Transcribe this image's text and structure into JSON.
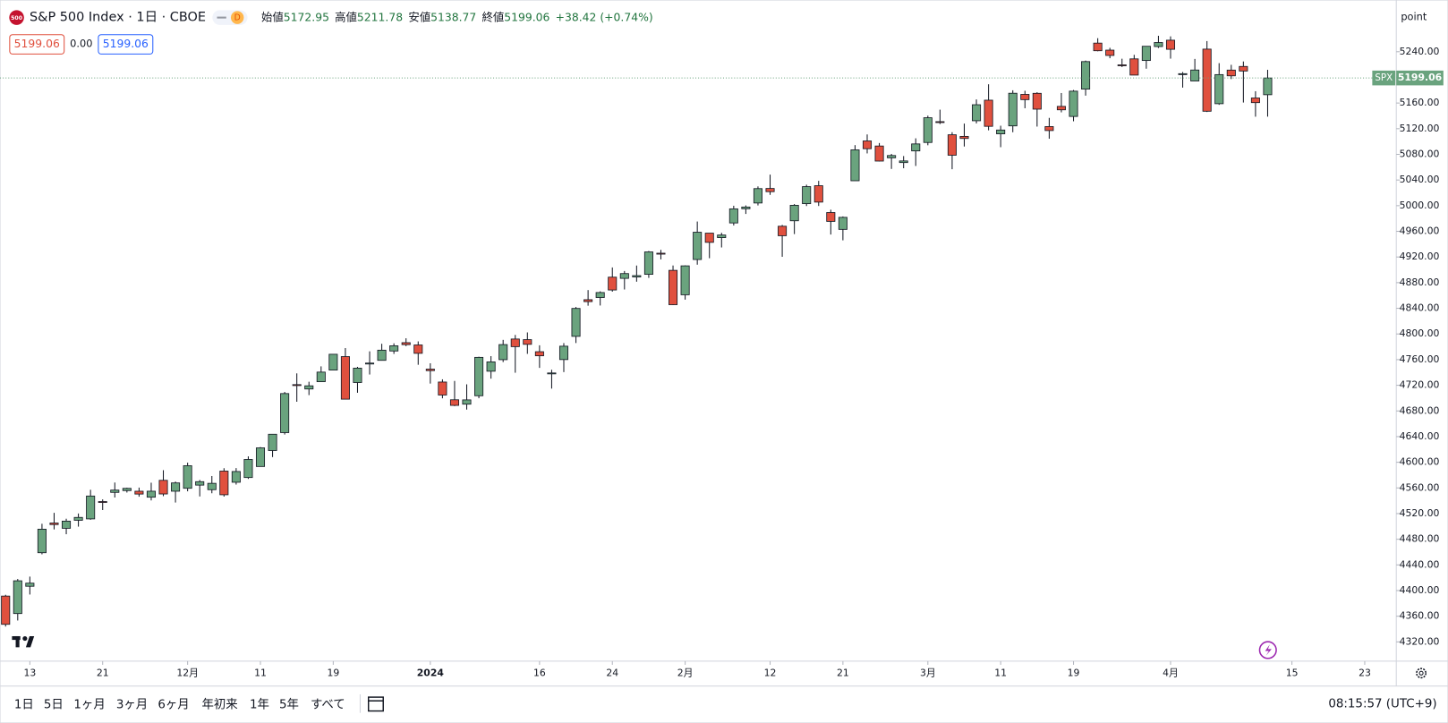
{
  "header": {
    "logo": "500",
    "title": "S&P 500 Index · 1日 · CBOE",
    "interval_badge": "D",
    "open_label": "始値",
    "high_label": "高値",
    "low_label": "安値",
    "close_label": "終値",
    "change": "+38.42 (+0.74%)",
    "sell": "5199.06",
    "spread": "0.00",
    "buy": "5199.06",
    "scale_mode": "point"
  },
  "toolbar": {
    "ranges": [
      "1日",
      "5日",
      "1ヶ月",
      "3ヶ月",
      "6ヶ月",
      "年初来",
      "1年",
      "5年",
      "すべて"
    ],
    "clock": "08:15:57 (UTC+9)"
  },
  "chart_data": {
    "type": "candlestick",
    "name": "SPX",
    "up_color": "#6aa37e",
    "down_color": "#e0503e",
    "xlim": [
      -0.46,
      114.6
    ],
    "xticks": [
      {
        "value": 2,
        "label": "13"
      },
      {
        "value": 8,
        "label": "21"
      },
      {
        "value": 15,
        "label": "12月"
      },
      {
        "value": 21,
        "label": "11"
      },
      {
        "value": 27,
        "label": "19"
      },
      {
        "value": 35,
        "label": "2024"
      },
      {
        "value": 44,
        "label": "16"
      },
      {
        "value": 50,
        "label": "24"
      },
      {
        "value": 56,
        "label": "2月"
      },
      {
        "value": 63,
        "label": "12"
      },
      {
        "value": 69,
        "label": "21"
      },
      {
        "value": 76,
        "label": "3月"
      },
      {
        "value": 82,
        "label": "11"
      },
      {
        "value": 88,
        "label": "19"
      },
      {
        "value": 96,
        "label": "4月"
      },
      {
        "value": 106,
        "label": "15"
      },
      {
        "value": 112,
        "label": "23"
      }
    ],
    "ylim": [
      4290,
      5320.6
    ],
    "yticks": [
      {
        "value": 4320,
        "label": "4320.00"
      },
      {
        "value": 4360,
        "label": "4360.00"
      },
      {
        "value": 4400,
        "label": "4400.00"
      },
      {
        "value": 4440,
        "label": "4440.00"
      },
      {
        "value": 4480,
        "label": "4480.00"
      },
      {
        "value": 4520,
        "label": "4520.00"
      },
      {
        "value": 4560,
        "label": "4560.00"
      },
      {
        "value": 4600,
        "label": "4600.00"
      },
      {
        "value": 4640,
        "label": "4640.00"
      },
      {
        "value": 4680,
        "label": "4680.00"
      },
      {
        "value": 4720,
        "label": "4720.00"
      },
      {
        "value": 4760,
        "label": "4760.00"
      },
      {
        "value": 4800,
        "label": "4800.00"
      },
      {
        "value": 4840,
        "label": "4840.00"
      },
      {
        "value": 4880,
        "label": "4880.00"
      },
      {
        "value": 4920,
        "label": "4920.00"
      },
      {
        "value": 4960,
        "label": "4960.00"
      },
      {
        "value": 5000,
        "label": "5000.00"
      },
      {
        "value": 5040,
        "label": "5040.00"
      },
      {
        "value": 5080,
        "label": "5080.00"
      },
      {
        "value": 5120,
        "label": "5120.00"
      },
      {
        "value": 5160,
        "label": "5160.00"
      },
      {
        "value": 5200,
        "label": "5200.00"
      },
      {
        "value": 5240,
        "label": "5240.00"
      }
    ],
    "grid": false,
    "open": [
      4391.41,
      4364.15,
      4406.66,
      4458.97,
      4505.3,
      4497.08,
      4509.55,
      4511.7,
      4538.77,
      4553.04,
      4555.84,
      4554.86,
      4545.55,
      4571.84,
      4554.87,
      4559.43,
      4564.37,
      4557.25,
      4586.23,
      4568.84,
      4576.2,
      4593.39,
      4618.3,
      4646.2,
      4721.04,
      4714.23,
      4725.58,
      4743.72,
      4764.73,
      4724.29,
      4753.92,
      4758.86,
      4773.45,
      4786.44,
      4782.88,
      4745.2,
      4725.07,
      4697.42,
      4690.57,
      4703.7,
      4741.93,
      4759.94,
      4792.13,
      4791.18,
      4772.35,
      4739.13,
      4760.1,
      4796.28,
      4853.42,
      4856.8,
      4888.56,
      4886.66,
      4888.91,
      4892.95,
      4925.89,
      4899.19,
      4861.11,
      4916.06,
      4957.19,
      4950.16,
      4973.05,
      4995.16,
      5004.17,
      5026.83,
      4967.94,
      4976.44,
      5003.14,
      5031.13,
      4989.32,
      4963.03,
      5038.83,
      5100.92,
      5093.0,
      5074.6,
      5067.2,
      5085.36,
      5098.51,
      5130.99,
      5110.52,
      5108.03,
      5132.38,
      5164.46,
      5111.96,
      5124.38,
      5173.49,
      5175.14,
      5123.31,
      5154.77,
      5139.09,
      5181.69,
      5253.43,
      5242.49,
      5219.52,
      5228.85,
      5226.31,
      5248.03,
      5257.97,
      5204.29,
      5194.37,
      5244.05,
      5158.95,
      5211.37,
      5217.03,
      5167.88,
      5172.95
    ],
    "high": [
      4393.4,
      4418.03,
      4421.76,
      4504.12,
      4521.17,
      4511.99,
      4520.12,
      4557.11,
      4542.14,
      4568.43,
      4560.31,
      4560.52,
      4568.14,
      4587.64,
      4569.89,
      4599.39,
      4572.37,
      4578.56,
      4590.74,
      4590.92,
      4609.23,
      4623.71,
      4643.93,
      4709.69,
      4738.57,
      4725.53,
      4749.52,
      4768.69,
      4778.01,
      4748.71,
      4772.94,
      4784.72,
      4785.39,
      4793.3,
      4788.43,
      4754.33,
      4729.29,
      4726.78,
      4721.49,
      4764.54,
      4765.47,
      4790.8,
      4798.5,
      4802.4,
      4782.34,
      4744.23,
      4785.79,
      4842.07,
      4868.41,
      4866.48,
      4903.68,
      4898.15,
      4906.69,
      4929.31,
      4931.09,
      4906.75,
      4906.97,
      4975.29,
      4957.19,
      4957.77,
      4999.89,
      5000.4,
      5030.06,
      5048.39,
      4969.95,
      5002.52,
      5032.72,
      5038.7,
      4993.71,
      4983.21,
      5094.39,
      5111.06,
      5097.66,
      5080.69,
      5077.37,
      5104.99,
      5140.33,
      5149.67,
      5114.54,
      5127.97,
      5165.62,
      5189.26,
      5124.66,
      5179.87,
      5179.14,
      5176.85,
      5136.86,
      5175.6,
      5180.31,
      5226.19,
      5261.1,
      5246.09,
      5229.09,
      5235.16,
      5246.18,
      5264.85,
      5263.95,
      5208.34,
      5228.75,
      5256.59,
      5222.18,
      5219.57,
      5224.81,
      5178.43,
      5211.78
    ],
    "low": [
      4343.94,
      4353.34,
      4393.82,
      4456.47,
      4495.31,
      4487.83,
      4499.66,
      4510.36,
      4525.51,
      4545.05,
      4552.8,
      4546.32,
      4540.51,
      4547.15,
      4537.24,
      4554.71,
      4546.72,
      4551.68,
      4546.5,
      4565.22,
      4574.06,
      4593.39,
      4608.09,
      4643.23,
      4694.34,
      4704.69,
      4725.58,
      4743.72,
      4697.82,
      4708.35,
      4736.77,
      4758.45,
      4768.9,
      4780.98,
      4751.99,
      4722.67,
      4699.71,
      4687.53,
      4682.11,
      4699.82,
      4730.35,
      4756.2,
      4739.58,
      4768.98,
      4747.12,
      4714.82,
      4740.57,
      4785.87,
      4844.05,
      4844.37,
      4865.94,
      4869.34,
      4881.47,
      4887.4,
      4916.27,
      4845.15,
      4853.52,
      4907.99,
      4918.09,
      4934.88,
      4969.05,
      4987.09,
      5000.34,
      5016.83,
      4920.31,
      4955.71,
      4999.44,
      4999.52,
      4955.02,
      4946.0,
      5038.83,
      5081.46,
      5068.91,
      5057.29,
      5058.35,
      5061.89,
      5094.16,
      5127.18,
      5056.82,
      5092.22,
      5128.21,
      5117.5,
      5091.14,
      5114.48,
      5151.88,
      5123.3,
      5104.35,
      5145.47,
      5131.59,
      5171.55,
      5240.66,
      5229.87,
      5216.09,
      5203.42,
      5213.52,
      5245.82,
      5229.2,
      5184.05,
      5194.37,
      5146.06,
      5157.21,
      5197.35,
      5160.78,
      5138.7,
      5138.77
    ],
    "close": [
      4347.35,
      4415.24,
      4411.55,
      4495.7,
      4502.88,
      4508.24,
      4514.02,
      4547.38,
      4538.19,
      4556.62,
      4559.34,
      4550.43,
      4554.89,
      4550.58,
      4567.8,
      4594.63,
      4569.78,
      4567.18,
      4549.34,
      4585.59,
      4604.37,
      4622.44,
      4643.7,
      4707.09,
      4719.55,
      4719.19,
      4740.56,
      4768.37,
      4698.35,
      4746.75,
      4754.63,
      4774.75,
      4781.58,
      4783.35,
      4769.83,
      4742.83,
      4704.81,
      4688.68,
      4697.24,
      4763.54,
      4756.5,
      4783.45,
      4780.24,
      4783.83,
      4765.98,
      4739.21,
      4780.94,
      4839.81,
      4850.43,
      4864.6,
      4868.55,
      4894.16,
      4890.97,
      4927.93,
      4924.97,
      4845.65,
      4906.19,
      4958.61,
      4942.81,
      4954.23,
      4995.06,
      4997.91,
      5026.61,
      5021.84,
      4953.17,
      5000.62,
      5029.73,
      5005.57,
      4975.51,
      4981.8,
      5087.03,
      5088.8,
      5069.53,
      5078.18,
      5069.76,
      5096.27,
      5137.08,
      5130.95,
      5078.65,
      5104.76,
      5157.36,
      5123.69,
      5117.94,
      5175.27,
      5165.31,
      5150.48,
      5117.09,
      5149.42,
      5178.51,
      5224.62,
      5241.53,
      5234.18,
      5218.19,
      5203.58,
      5248.49,
      5254.35,
      5243.77,
      5205.81,
      5211.49,
      5147.21,
      5204.34,
      5202.39,
      5209.91,
      5160.64,
      5199.06
    ]
  }
}
